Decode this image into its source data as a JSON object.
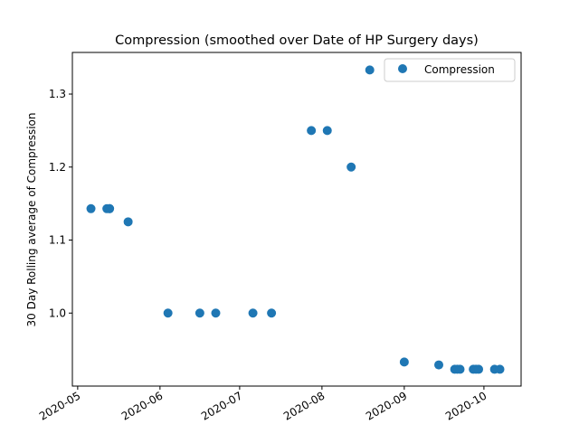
{
  "chart_data": {
    "type": "scatter",
    "title": "Compression  (smoothed over Date of HP Surgery days)",
    "xlabel": "",
    "ylabel": "30 Day Rolling average of Compression",
    "x_is_date": true,
    "xlim": [
      "2020-04-29",
      "2020-10-15"
    ],
    "ylim": [
      0.9,
      1.357
    ],
    "x_ticks": [
      "2020-05-01",
      "2020-06-01",
      "2020-07-01",
      "2020-08-01",
      "2020-09-01",
      "2020-10-01"
    ],
    "x_tick_labels": [
      "2020-05",
      "2020-06",
      "2020-07",
      "2020-08",
      "2020-09",
      "2020-10"
    ],
    "y_ticks": [
      1.0,
      1.1,
      1.2,
      1.3
    ],
    "y_tick_labels": [
      "1.0",
      "1.1",
      "1.2",
      "1.3"
    ],
    "grid": false,
    "legend_position": "top-right",
    "marker_color": "#1f77b4",
    "series": [
      {
        "name": "Compression",
        "points": [
          {
            "x": "2020-05-06",
            "y": 1.143
          },
          {
            "x": "2020-05-12",
            "y": 1.143
          },
          {
            "x": "2020-05-13",
            "y": 1.143
          },
          {
            "x": "2020-05-13",
            "y": 1.143
          },
          {
            "x": "2020-05-20",
            "y": 1.125
          },
          {
            "x": "2020-06-04",
            "y": 1.0
          },
          {
            "x": "2020-06-16",
            "y": 1.0
          },
          {
            "x": "2020-06-22",
            "y": 1.0
          },
          {
            "x": "2020-07-06",
            "y": 1.0
          },
          {
            "x": "2020-07-13",
            "y": 1.0
          },
          {
            "x": "2020-07-28",
            "y": 1.25
          },
          {
            "x": "2020-08-03",
            "y": 1.25
          },
          {
            "x": "2020-08-12",
            "y": 1.2
          },
          {
            "x": "2020-08-19",
            "y": 1.333
          },
          {
            "x": "2020-09-01",
            "y": 0.933
          },
          {
            "x": "2020-09-14",
            "y": 0.929
          },
          {
            "x": "2020-09-20",
            "y": 0.923
          },
          {
            "x": "2020-09-21",
            "y": 0.923
          },
          {
            "x": "2020-09-22",
            "y": 0.923
          },
          {
            "x": "2020-09-27",
            "y": 0.923
          },
          {
            "x": "2020-09-28",
            "y": 0.923
          },
          {
            "x": "2020-09-29",
            "y": 0.923
          },
          {
            "x": "2020-10-05",
            "y": 0.923
          },
          {
            "x": "2020-10-07",
            "y": 0.923
          }
        ]
      }
    ]
  }
}
